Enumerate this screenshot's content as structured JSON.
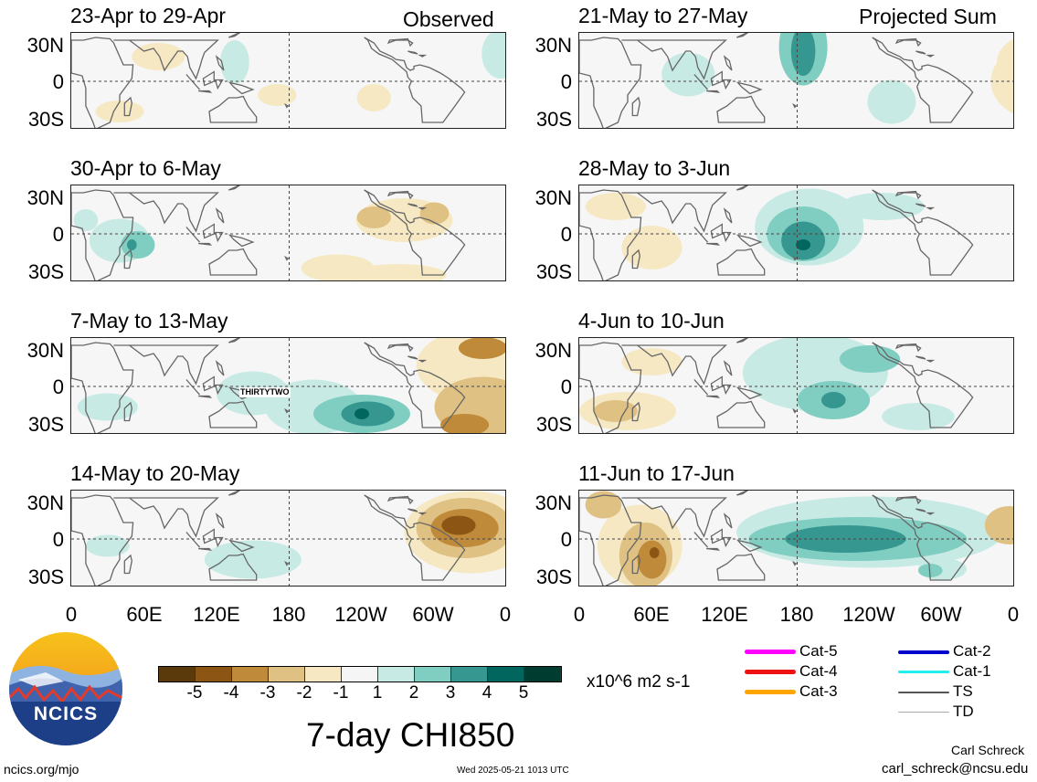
{
  "labels": {
    "observed": "Observed",
    "projected": "Projected Sum",
    "lat_ticks": [
      "30N",
      "0",
      "30S"
    ],
    "lon_ticks": [
      "0",
      "60E",
      "120E",
      "180",
      "120W",
      "60W",
      "0"
    ],
    "storm_label": "THIRTYTWO",
    "units": "x10^6 m2 s-1",
    "main_title": "7-day CHI850",
    "site": "ncics.org/mjo",
    "timestamp": "Wed 2025-05-21 1013 UTC",
    "author": "Carl Schreck",
    "email": "carl_schreck@ncsu.edu",
    "logo_text": "NCICS"
  },
  "legend": [
    {
      "label": "Cat-5",
      "color": "#ff00ff",
      "width": 5
    },
    {
      "label": "Cat-4",
      "color": "#ee1111",
      "width": 5
    },
    {
      "label": "Cat-3",
      "color": "#ffa500",
      "width": 5
    },
    {
      "label": "Cat-2",
      "color": "#0000cc",
      "width": 4
    },
    {
      "label": "Cat-1",
      "color": "#22eeee",
      "width": 3
    },
    {
      "label": "TS",
      "color": "#555555",
      "width": 2
    },
    {
      "label": "TD",
      "color": "#aaaaaa",
      "width": 1
    }
  ],
  "colorbar": {
    "ticks": [
      "-5",
      "-4",
      "-3",
      "-2",
      "-1",
      "1",
      "2",
      "3",
      "4",
      "5"
    ],
    "colors": [
      "#5a3a0a",
      "#8c5514",
      "#bf8a3a",
      "#dfc183",
      "#f6e8c3",
      "#f5f5f5",
      "#c7eae5",
      "#80cdc1",
      "#35978f",
      "#01665e",
      "#003c30"
    ]
  },
  "chart_data": {
    "type": "heatmap",
    "variable": "7-day CHI850",
    "units": "x10^6 m2 s-1",
    "xlim": [
      "0",
      "0"
    ],
    "ylim": [
      "30S",
      "30N"
    ],
    "panels": [
      {
        "title": "23-Apr to 29-Apr",
        "group": "Observed",
        "blobs": [
          [
            72,
            18,
            22,
            10,
            -1
          ],
          [
            135,
            14,
            12,
            16,
            1
          ],
          [
            170,
            -10,
            16,
            8,
            -1
          ],
          [
            40,
            -22,
            20,
            8,
            -1
          ],
          [
            250,
            -12,
            14,
            10,
            -1
          ],
          [
            355,
            20,
            16,
            18,
            1
          ],
          [
            398,
            10,
            10,
            16,
            1
          ],
          [
            458,
            -22,
            12,
            8,
            1
          ]
        ]
      },
      {
        "title": "21-May to 27-May",
        "group": "Projected Sum",
        "blobs": [
          [
            90,
            5,
            22,
            16,
            1
          ],
          [
            185,
            25,
            20,
            28,
            2
          ],
          [
            185,
            22,
            10,
            18,
            3
          ],
          [
            258,
            -15,
            20,
            16,
            1
          ],
          [
            375,
            14,
            30,
            20,
            -1
          ],
          [
            380,
            0,
            40,
            28,
            -1
          ],
          [
            400,
            -10,
            26,
            18,
            -2
          ],
          [
            380,
            5,
            10,
            7,
            -4
          ],
          [
            395,
            -22,
            8,
            7,
            -3
          ],
          [
            445,
            -10,
            14,
            16,
            -1
          ]
        ]
      },
      {
        "title": "30-Apr to 6-May",
        "group": "Observed",
        "blobs": [
          [
            40,
            -5,
            25,
            16,
            1
          ],
          [
            55,
            -8,
            14,
            10,
            2
          ],
          [
            50,
            -8,
            4,
            4,
            3
          ],
          [
            12,
            10,
            10,
            8,
            1
          ],
          [
            275,
            10,
            40,
            16,
            -1
          ],
          [
            250,
            12,
            14,
            8,
            -2
          ],
          [
            300,
            15,
            12,
            8,
            -2
          ],
          [
            220,
            -25,
            30,
            10,
            -1
          ],
          [
            270,
            -30,
            40,
            8,
            -1
          ],
          [
            400,
            -15,
            12,
            16,
            -1
          ],
          [
            450,
            15,
            20,
            14,
            1
          ]
        ]
      },
      {
        "title": "28-May to 3-Jun",
        "group": "Projected Sum",
        "blobs": [
          [
            30,
            20,
            25,
            10,
            -1
          ],
          [
            60,
            -10,
            25,
            16,
            -1
          ],
          [
            190,
            5,
            45,
            28,
            1
          ],
          [
            185,
            0,
            30,
            20,
            2
          ],
          [
            185,
            -5,
            18,
            14,
            3
          ],
          [
            185,
            -8,
            6,
            4,
            4
          ],
          [
            250,
            20,
            35,
            10,
            1
          ],
          [
            400,
            18,
            28,
            14,
            -1
          ],
          [
            450,
            -5,
            14,
            16,
            -1
          ],
          [
            465,
            -25,
            10,
            8,
            -1
          ]
        ]
      },
      {
        "title": "7-May to 13-May",
        "group": "Observed",
        "blobs": [
          [
            30,
            -15,
            25,
            10,
            1
          ],
          [
            150,
            -5,
            30,
            16,
            1
          ],
          [
            200,
            -15,
            40,
            20,
            1
          ],
          [
            240,
            -20,
            40,
            14,
            2
          ],
          [
            245,
            -20,
            22,
            9,
            3
          ],
          [
            240,
            -20,
            6,
            4,
            4
          ],
          [
            340,
            15,
            55,
            28,
            -1
          ],
          [
            340,
            -15,
            40,
            22,
            -2
          ],
          [
            325,
            -28,
            20,
            8,
            -3
          ],
          [
            420,
            -5,
            30,
            18,
            -1
          ],
          [
            340,
            28,
            20,
            8,
            -3
          ]
        ]
      },
      {
        "title": "4-Jun to 10-Jun",
        "group": "Projected Sum",
        "blobs": [
          [
            40,
            -18,
            40,
            14,
            -1
          ],
          [
            30,
            -18,
            18,
            8,
            -2
          ],
          [
            60,
            18,
            25,
            10,
            -1
          ],
          [
            195,
            10,
            60,
            28,
            1
          ],
          [
            210,
            -10,
            30,
            14,
            2
          ],
          [
            210,
            -10,
            10,
            6,
            3
          ],
          [
            240,
            20,
            25,
            10,
            2
          ],
          [
            280,
            -22,
            30,
            10,
            1
          ],
          [
            420,
            10,
            30,
            14,
            -1
          ],
          [
            455,
            -15,
            14,
            14,
            -1
          ]
        ]
      },
      {
        "title": "14-May to 20-May",
        "group": "Observed",
        "blobs": [
          [
            150,
            -15,
            40,
            14,
            1
          ],
          [
            30,
            -5,
            18,
            8,
            1
          ],
          [
            330,
            5,
            55,
            30,
            -1
          ],
          [
            325,
            8,
            40,
            22,
            -2
          ],
          [
            325,
            8,
            28,
            14,
            -3
          ],
          [
            320,
            10,
            14,
            7,
            -4
          ],
          [
            415,
            -25,
            25,
            12,
            -1
          ],
          [
            440,
            -28,
            12,
            6,
            -2
          ],
          [
            420,
            10,
            14,
            8,
            -1
          ]
        ]
      },
      {
        "title": "11-Jun to 17-Jun",
        "group": "Projected Sum",
        "blobs": [
          [
            50,
            -5,
            35,
            30,
            -1
          ],
          [
            55,
            -12,
            22,
            24,
            -2
          ],
          [
            60,
            -15,
            12,
            14,
            -3
          ],
          [
            62,
            -10,
            4,
            4,
            -4
          ],
          [
            20,
            25,
            15,
            10,
            -2
          ],
          [
            240,
            5,
            110,
            26,
            1
          ],
          [
            230,
            0,
            90,
            16,
            2
          ],
          [
            220,
            0,
            50,
            10,
            3
          ],
          [
            300,
            -22,
            20,
            8,
            1
          ],
          [
            290,
            -23,
            10,
            5,
            2
          ],
          [
            355,
            10,
            20,
            14,
            -2
          ],
          [
            445,
            -18,
            20,
            14,
            -1
          ]
        ]
      }
    ]
  }
}
